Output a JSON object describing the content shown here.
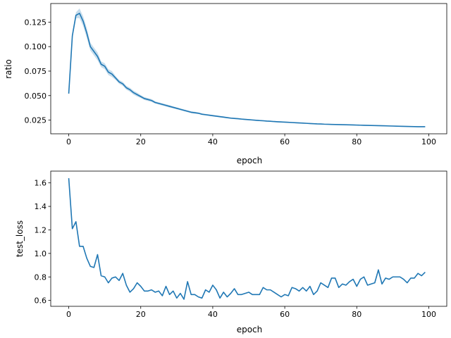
{
  "chart_data": [
    {
      "type": "line",
      "xlabel": "epoch",
      "ylabel": "ratio",
      "xlim": [
        -5,
        105
      ],
      "ylim": [
        0.011,
        0.144
      ],
      "xticks": [
        0,
        20,
        40,
        60,
        80,
        100
      ],
      "yticks": [
        0.025,
        0.05,
        0.075,
        0.1,
        0.125
      ],
      "ytick_labels": [
        "0.025",
        "0.050",
        "0.075",
        "0.100",
        "0.125"
      ],
      "xtick_labels": [
        "0",
        "20",
        "40",
        "60",
        "80",
        "100"
      ],
      "color": "#1f77b4",
      "band_color": "#1f77b4",
      "grid": false,
      "series": [
        {
          "x": [
            0,
            1,
            2,
            3,
            4,
            5,
            6,
            7,
            8,
            9,
            10,
            11,
            12,
            13,
            14,
            15,
            16,
            17,
            18,
            19,
            20,
            21,
            22,
            23,
            24,
            25,
            26,
            27,
            28,
            29,
            30,
            31,
            32,
            33,
            34,
            35,
            36,
            37,
            38,
            39,
            40,
            41,
            42,
            43,
            44,
            45,
            46,
            47,
            48,
            49,
            50,
            51,
            52,
            53,
            54,
            55,
            56,
            57,
            58,
            59,
            60,
            61,
            62,
            63,
            64,
            65,
            66,
            67,
            68,
            69,
            70,
            71,
            72,
            73,
            74,
            75,
            76,
            77,
            78,
            79,
            80,
            81,
            82,
            83,
            84,
            85,
            86,
            87,
            88,
            89,
            90,
            91,
            92,
            93,
            94,
            95,
            96,
            97,
            98,
            99
          ],
          "y": [
            0.052,
            0.111,
            0.132,
            0.134,
            0.126,
            0.114,
            0.1,
            0.095,
            0.09,
            0.082,
            0.08,
            0.074,
            0.072,
            0.068,
            0.064,
            0.062,
            0.058,
            0.056,
            0.053,
            0.051,
            0.049,
            0.047,
            0.046,
            0.045,
            0.043,
            0.042,
            0.041,
            0.04,
            0.039,
            0.038,
            0.037,
            0.036,
            0.035,
            0.034,
            0.033,
            0.0325,
            0.032,
            0.031,
            0.0305,
            0.03,
            0.0295,
            0.029,
            0.0285,
            0.028,
            0.0275,
            0.027,
            0.0267,
            0.0264,
            0.026,
            0.0257,
            0.0254,
            0.0251,
            0.0248,
            0.0245,
            0.0243,
            0.024,
            0.0238,
            0.0235,
            0.0233,
            0.0231,
            0.0229,
            0.0227,
            0.0225,
            0.0223,
            0.0221,
            0.0219,
            0.0217,
            0.0215,
            0.0213,
            0.0211,
            0.021,
            0.0208,
            0.0207,
            0.0206,
            0.0205,
            0.0204,
            0.0203,
            0.0202,
            0.0201,
            0.02,
            0.0199,
            0.0198,
            0.0197,
            0.0196,
            0.0195,
            0.0194,
            0.0193,
            0.0192,
            0.0191,
            0.019,
            0.0189,
            0.0188,
            0.0187,
            0.0186,
            0.0185,
            0.0184,
            0.0183,
            0.0182,
            0.0182,
            0.0182
          ],
          "band": [
            0.002,
            0.003,
            0.003,
            0.005,
            0.005,
            0.005,
            0.004,
            0.004,
            0.004,
            0.003,
            0.003,
            0.003,
            0.003,
            0.002,
            0.002,
            0.002,
            0.002,
            0.002,
            0.002,
            0.002,
            0.0015,
            0.0015,
            0.0015,
            0.0015,
            0.0012,
            0.0012,
            0.0012,
            0.0012,
            0.0012,
            0.001,
            0.001,
            0.001,
            0.001,
            0.001,
            0.001,
            0.001,
            0.0008,
            0.0008,
            0.0008,
            0.0008,
            0.0008,
            0.0008,
            0.0008,
            0.0008,
            0.0007,
            0.0007,
            0.0007,
            0.0007,
            0.0007,
            0.0007,
            0.0006,
            0.0006,
            0.0006,
            0.0006,
            0.0006,
            0.0006,
            0.0006,
            0.0006,
            0.0006,
            0.0006,
            0.0005,
            0.0005,
            0.0005,
            0.0005,
            0.0005,
            0.0005,
            0.0005,
            0.0005,
            0.0005,
            0.0005,
            0.0005,
            0.0005,
            0.0005,
            0.0005,
            0.0005,
            0.0005,
            0.0005,
            0.0005,
            0.0005,
            0.0005,
            0.0005,
            0.0005,
            0.0005,
            0.0005,
            0.0005,
            0.0005,
            0.0005,
            0.0005,
            0.0005,
            0.0005,
            0.0005,
            0.0005,
            0.0005,
            0.0005,
            0.0005,
            0.0005,
            0.0005,
            0.0005,
            0.0005,
            0.0005
          ]
        }
      ]
    },
    {
      "type": "line",
      "xlabel": "epoch",
      "ylabel": "test_loss",
      "xlim": [
        -5,
        105
      ],
      "ylim": [
        0.55,
        1.7
      ],
      "xticks": [
        0,
        20,
        40,
        60,
        80,
        100
      ],
      "yticks": [
        0.6,
        0.8,
        1.0,
        1.2,
        1.4,
        1.6
      ],
      "ytick_labels": [
        "0.6",
        "0.8",
        "1.0",
        "1.2",
        "1.4",
        "1.6"
      ],
      "xtick_labels": [
        "0",
        "20",
        "40",
        "60",
        "80",
        "100"
      ],
      "color": "#1f77b4",
      "grid": false,
      "series": [
        {
          "x": [
            0,
            1,
            2,
            3,
            4,
            5,
            6,
            7,
            8,
            9,
            10,
            11,
            12,
            13,
            14,
            15,
            16,
            17,
            18,
            19,
            20,
            21,
            22,
            23,
            24,
            25,
            26,
            27,
            28,
            29,
            30,
            31,
            32,
            33,
            34,
            35,
            36,
            37,
            38,
            39,
            40,
            41,
            42,
            43,
            44,
            45,
            46,
            47,
            48,
            49,
            50,
            51,
            52,
            53,
            54,
            55,
            56,
            57,
            58,
            59,
            60,
            61,
            62,
            63,
            64,
            65,
            66,
            67,
            68,
            69,
            70,
            71,
            72,
            73,
            74,
            75,
            76,
            77,
            78,
            79,
            80,
            81,
            82,
            83,
            84,
            85,
            86,
            87,
            88,
            89,
            90,
            91,
            92,
            93,
            94,
            95,
            96,
            97,
            98,
            99
          ],
          "y": [
            1.64,
            1.21,
            1.27,
            1.06,
            1.06,
            0.96,
            0.89,
            0.88,
            0.99,
            0.81,
            0.8,
            0.75,
            0.79,
            0.8,
            0.77,
            0.83,
            0.73,
            0.67,
            0.7,
            0.75,
            0.72,
            0.68,
            0.68,
            0.69,
            0.67,
            0.68,
            0.64,
            0.72,
            0.65,
            0.68,
            0.62,
            0.66,
            0.61,
            0.76,
            0.65,
            0.65,
            0.63,
            0.62,
            0.69,
            0.67,
            0.73,
            0.69,
            0.62,
            0.67,
            0.63,
            0.66,
            0.7,
            0.65,
            0.65,
            0.66,
            0.67,
            0.65,
            0.65,
            0.65,
            0.71,
            0.69,
            0.69,
            0.67,
            0.65,
            0.63,
            0.65,
            0.64,
            0.71,
            0.7,
            0.68,
            0.71,
            0.68,
            0.72,
            0.65,
            0.68,
            0.75,
            0.73,
            0.71,
            0.79,
            0.79,
            0.71,
            0.74,
            0.73,
            0.76,
            0.78,
            0.72,
            0.78,
            0.8,
            0.73,
            0.74,
            0.75,
            0.86,
            0.74,
            0.79,
            0.78,
            0.8,
            0.8,
            0.8,
            0.78,
            0.75,
            0.79,
            0.79,
            0.83,
            0.81,
            0.84
          ]
        }
      ]
    }
  ]
}
